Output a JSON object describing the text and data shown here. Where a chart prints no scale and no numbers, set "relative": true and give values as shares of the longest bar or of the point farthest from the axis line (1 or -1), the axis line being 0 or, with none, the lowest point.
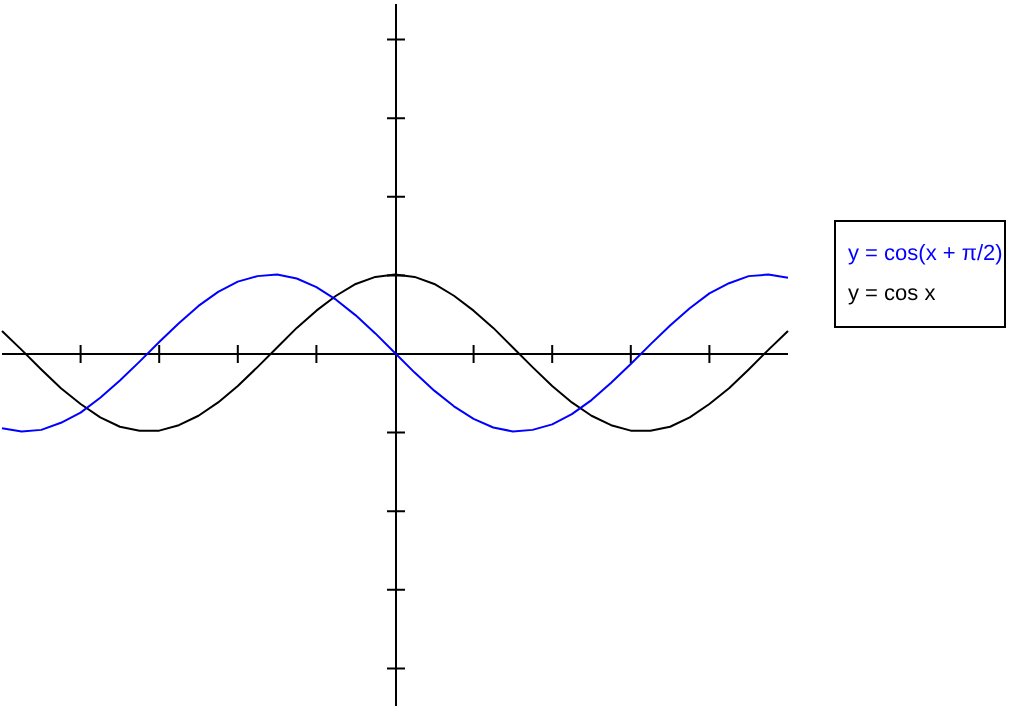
{
  "chart_data": {
    "type": "line",
    "relative": true,
    "legend": "right",
    "marker": "none",
    "line_style": "solid",
    "categories": [
      null,
      null,
      null,
      null,
      null,
      null,
      null,
      null,
      null,
      null,
      null,
      null,
      null,
      null,
      null,
      null,
      null,
      null,
      null,
      null,
      null,
      null,
      null,
      null,
      null,
      null,
      null,
      null,
      null,
      null,
      null,
      null,
      null,
      null,
      null,
      null,
      null,
      null,
      null,
      null,
      null
    ],
    "series": [
      {
        "name": "y = cos(x + π/2)",
        "color": "#0000ff",
        "values": [
          -0.96,
          -1.0,
          -0.98,
          -0.89,
          -0.76,
          -0.57,
          -0.35,
          -0.11,
          0.14,
          0.38,
          0.6,
          0.78,
          0.91,
          0.98,
          1.0,
          0.95,
          0.84,
          0.68,
          0.48,
          0.25,
          0,
          -0.25,
          -0.48,
          -0.68,
          -0.84,
          -0.95,
          -1.0,
          -0.98,
          -0.91,
          -0.78,
          -0.6,
          -0.38,
          -0.14,
          0.11,
          0.35,
          0.57,
          0.76,
          0.89,
          0.98,
          1.0,
          0.96
        ]
      },
      {
        "name": "y = cos x",
        "color": "#000000",
        "values": [
          0.28,
          0.04,
          -0.21,
          -0.45,
          -0.65,
          -0.82,
          -0.94,
          -0.99,
          -0.99,
          -0.92,
          -0.8,
          -0.63,
          -0.42,
          -0.18,
          0.07,
          0.32,
          0.54,
          0.73,
          0.88,
          0.97,
          1,
          0.97,
          0.88,
          0.73,
          0.54,
          0.32,
          0.07,
          -0.18,
          -0.42,
          -0.63,
          -0.8,
          -0.92,
          -0.99,
          -0.99,
          -0.94,
          -0.82,
          -0.65,
          -0.45,
          -0.21,
          0.04,
          0.28
        ]
      }
    ]
  }
}
